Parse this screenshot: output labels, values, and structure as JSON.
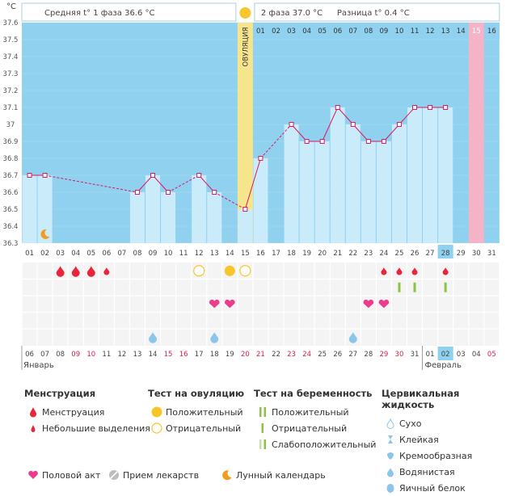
{
  "header": {
    "unit": "°С",
    "phase1": "Средняя t° 1 фаза 36.6 °С",
    "phase2": "2 фаза 37.0 °С",
    "diff": "Разница t° 0.4 °С",
    "ovulation": "ОВУЛЯЦИЯ"
  },
  "chart_data": {
    "type": "line",
    "ylim": [
      36.3,
      37.6
    ],
    "y_ticks": [
      "37.6",
      "37.5",
      "37.4",
      "37.3",
      "37.2",
      "37.1",
      "37",
      "36.9",
      "36.8",
      "36.7",
      "36.6",
      "36.5",
      "36.4",
      "36.3"
    ],
    "cycle_days": [
      "01",
      "02",
      "03",
      "04",
      "05",
      "06",
      "07",
      "08",
      "09",
      "10",
      "11",
      "12",
      "13",
      "14",
      "15",
      "16"
    ],
    "day_labels": [
      "01",
      "02",
      "03",
      "04",
      "05",
      "06",
      "07",
      "08",
      "09",
      "10",
      "11",
      "12",
      "13",
      "14",
      "15",
      "16",
      "17",
      "18",
      "19",
      "20",
      "21",
      "22",
      "23",
      "24",
      "25",
      "26",
      "27",
      "28",
      "29",
      "30",
      "31"
    ],
    "temperatures": [
      36.7,
      36.7,
      null,
      null,
      null,
      null,
      null,
      36.6,
      36.7,
      36.6,
      null,
      36.7,
      36.6,
      null,
      36.5,
      36.8,
      null,
      37.0,
      36.9,
      36.9,
      37.1,
      37.0,
      36.9,
      36.9,
      37.0,
      37.1,
      37.1,
      37.1,
      null,
      null,
      null
    ],
    "dates": [
      "06",
      "07",
      "08",
      "09",
      "10",
      "11",
      "12",
      "13",
      "14",
      "15",
      "16",
      "17",
      "18",
      "19",
      "20",
      "21",
      "22",
      "23",
      "24",
      "25",
      "26",
      "27",
      "28",
      "29",
      "30",
      "31",
      "01",
      "02",
      "03",
      "04",
      "05"
    ],
    "red_dates": [
      3,
      4,
      9,
      10,
      14,
      15,
      17,
      18,
      23,
      24,
      30
    ],
    "highlight_index": 27,
    "ovulation_index": 14,
    "pink_index": 29,
    "months": [
      "Январь",
      "Февраль"
    ],
    "menstruation": [
      {
        "i": 2,
        "s": "big"
      },
      {
        "i": 3,
        "s": "big"
      },
      {
        "i": 4,
        "s": "big"
      },
      {
        "i": 5,
        "s": "small"
      },
      {
        "i": 23,
        "s": "small"
      },
      {
        "i": 24,
        "s": "small"
      },
      {
        "i": 25,
        "s": "small"
      },
      {
        "i": 27,
        "s": "small"
      }
    ],
    "ovulation_test": [
      {
        "i": 11,
        "v": "negative"
      },
      {
        "i": 13,
        "v": "positive"
      },
      {
        "i": 14,
        "v": "negative"
      }
    ],
    "pregnancy_test": [
      {
        "i": 24,
        "v": "positive"
      },
      {
        "i": 25,
        "v": "positive"
      },
      {
        "i": 27,
        "v": "positive"
      }
    ],
    "intercourse": [
      12,
      13,
      22,
      23
    ],
    "cervical_egg_white": [
      8,
      12,
      21
    ],
    "moon": [
      1
    ]
  },
  "legend": {
    "menstruation": {
      "title": "Менструация",
      "items": [
        "Менструация",
        "Небольшие выделения"
      ]
    },
    "ovulation_test": {
      "title": "Тест на овуляцию",
      "items": [
        "Положительный",
        "Отрицательный"
      ]
    },
    "pregnancy_test": {
      "title": "Тест на беременность",
      "items": [
        "Положительный",
        "Отрицательный",
        "Слабоположительный"
      ]
    },
    "cervical": {
      "title": "Цервикальная жидкость",
      "items": [
        "Сухо",
        "Клейкая",
        "Кремообразная",
        "Водянистая",
        "Яичный белок"
      ]
    },
    "bottom": [
      "Половой акт",
      "Прием лекарств",
      "Лунный календарь"
    ]
  },
  "colors": {
    "plot_bg": "#8fd1ef",
    "bar": "#c9ebfa",
    "line": "#d81b60",
    "ovulation_band": "#f7e58e",
    "pink_band": "#f5b3c8",
    "drop": "#e8253b",
    "heart": "#ec3d8c",
    "cervical": "#8cc5ea",
    "ovul_test": "#f7c52c",
    "preg_test": "#8bc34a"
  }
}
